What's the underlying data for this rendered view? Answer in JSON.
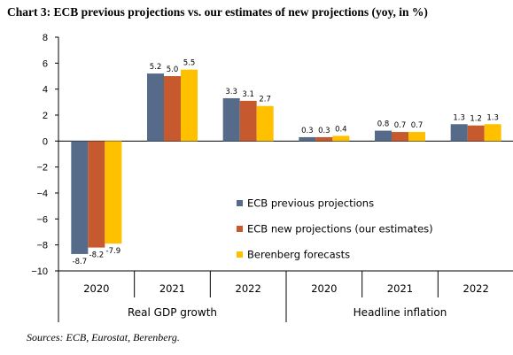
{
  "title": "Chart 3: ECB previous projections vs. our estimates of new projections (yoy, in %)",
  "source": "Sources: ECB, Eurostat, Berenberg.",
  "chart_data": {
    "type": "bar",
    "y_ticks": [
      "8",
      "6",
      "4",
      "2",
      "0",
      "−2",
      "−4",
      "−6",
      "−8",
      "−10"
    ],
    "ylim": [
      -10,
      8
    ],
    "grid": false,
    "legend_position": "lower-right inside plot",
    "groups": [
      {
        "label": "Real GDP growth",
        "categories": [
          "2020",
          "2021",
          "2022"
        ]
      },
      {
        "label": "Headline inflation",
        "categories": [
          "2020",
          "2021",
          "2022"
        ]
      }
    ],
    "categories": [
      "2020",
      "2021",
      "2022",
      "2020",
      "2021",
      "2022"
    ],
    "series": [
      {
        "name": "ECB previous projections",
        "color": "#566a8a",
        "values": [
          -8.7,
          5.2,
          3.3,
          0.3,
          0.8,
          1.3
        ],
        "labels": [
          "-8.7",
          "5.2",
          "3.3",
          "0.3",
          "0.8",
          "1.3"
        ]
      },
      {
        "name": "ECB new projections (our estimates)",
        "color": "#c65a2e",
        "values": [
          -8.2,
          5.0,
          3.1,
          0.3,
          0.7,
          1.2
        ],
        "labels": [
          "-8.2",
          "5.0",
          "3.1",
          "0.3",
          "0.7",
          "1.2"
        ]
      },
      {
        "name": "Berenberg forecasts",
        "color": "#ffc000",
        "values": [
          -7.9,
          5.5,
          2.7,
          0.4,
          0.7,
          1.3
        ],
        "labels": [
          "-7.9",
          "5.5",
          "2.7",
          "0.4",
          "0.7",
          "1.3"
        ]
      }
    ]
  }
}
